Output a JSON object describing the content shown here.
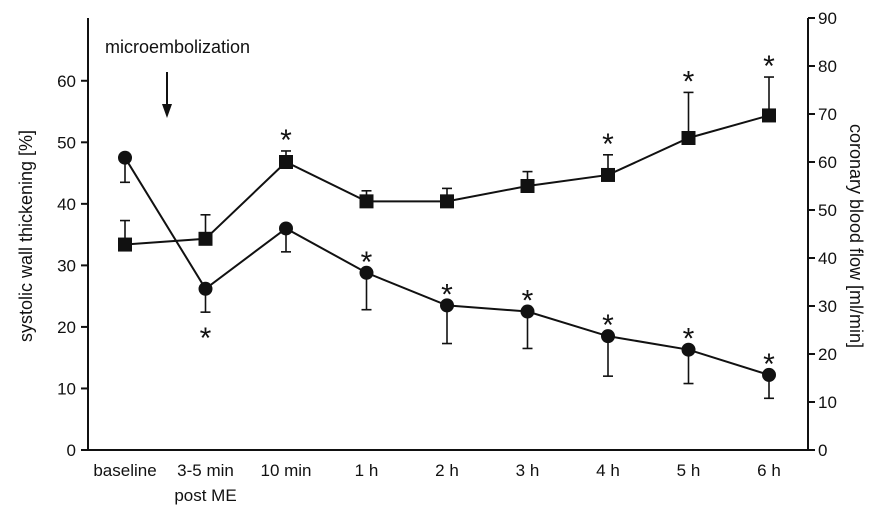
{
  "chart_data": {
    "type": "line",
    "title": "",
    "categories": [
      "baseline",
      "3-5 min post ME",
      "10 min",
      "1 h",
      "2 h",
      "3 h",
      "4 h",
      "5 h",
      "6 h"
    ],
    "category_lines": [
      [
        "baseline"
      ],
      [
        "3-5 min",
        "post ME"
      ],
      [
        "10 min"
      ],
      [
        "1 h"
      ],
      [
        "2 h"
      ],
      [
        "3 h"
      ],
      [
        "4 h"
      ],
      [
        "5 h"
      ],
      [
        "6 h"
      ]
    ],
    "ylabel_left": "systolic wall thickening [%]",
    "ylabel_right": "coronary blood flow [ml/min]",
    "ylim_left": [
      0,
      65
    ],
    "yticks_left": [
      0,
      10,
      20,
      30,
      40,
      50,
      60
    ],
    "ylim_right": [
      0,
      90
    ],
    "yticks_right": [
      0,
      10,
      20,
      30,
      40,
      50,
      60,
      70,
      80,
      90
    ],
    "annotation": {
      "text": "microembolization",
      "category_index": 1
    },
    "significance_marker": "*",
    "series": [
      {
        "axis": "left",
        "marker": "circle",
        "values": [
          47.5,
          26.2,
          36.0,
          28.8,
          23.5,
          22.5,
          18.5,
          16.3,
          12.2
        ],
        "error": [
          4.0,
          3.8,
          3.8,
          6.0,
          6.2,
          6.0,
          6.5,
          5.5,
          3.8
        ],
        "error_direction": [
          "down",
          "down",
          "down",
          "down",
          "down",
          "down",
          "down",
          "down",
          "down"
        ],
        "significant": [
          false,
          true,
          false,
          true,
          true,
          true,
          true,
          true,
          true
        ],
        "significance_position": [
          "above",
          "below",
          "above",
          "above",
          "above",
          "above",
          "above",
          "above",
          "above"
        ]
      },
      {
        "axis": "right",
        "marker": "square",
        "values": [
          42.8,
          44.0,
          60.0,
          51.8,
          51.8,
          55.0,
          57.3,
          65.0,
          69.7
        ],
        "error": [
          5.0,
          5.0,
          2.3,
          2.2,
          2.7,
          3.0,
          4.2,
          9.5,
          8.0
        ],
        "error_direction": [
          "up",
          "up",
          "up",
          "up",
          "up",
          "up",
          "up",
          "up",
          "up"
        ],
        "significant": [
          false,
          false,
          true,
          false,
          false,
          false,
          true,
          true,
          true
        ],
        "significance_position": [
          "above",
          "above",
          "above",
          "above",
          "above",
          "above",
          "above",
          "above",
          "above"
        ]
      }
    ]
  }
}
